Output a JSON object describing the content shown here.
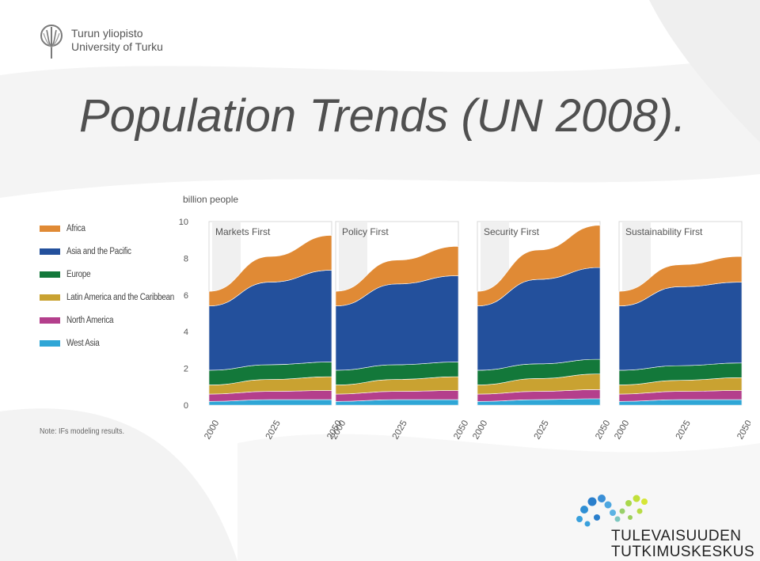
{
  "slide": {
    "title": "Population Trends (UN 2008).",
    "university_logo": {
      "line1": "Turun yliopisto",
      "line2": "University of Turku"
    },
    "center_logo": {
      "line1": "TULEVAISUUDEN",
      "line2": "TUTKIMUSKESKUS"
    },
    "note": "Note: IFs modeling results."
  },
  "colors": {
    "Africa": "#e08a35",
    "Asia and the Pacific": "#23509c",
    "Europe": "#13783a",
    "Latin America and the Caribbean": "#c9a231",
    "North America": "#b43f8c",
    "West Asia": "#2fa6d6"
  },
  "chart_data": {
    "type": "area",
    "stacked": true,
    "ylabel": "billion people",
    "yticks": [
      "0",
      "2",
      "4",
      "6",
      "8",
      "10"
    ],
    "ylim": [
      0,
      10
    ],
    "x": [
      "2000",
      "2025",
      "2050"
    ],
    "grid": false,
    "legend_position": "left",
    "legend": [
      "Africa",
      "Asia and the Pacific",
      "Europe",
      "Latin America and the Caribbean",
      "North America",
      "West Asia"
    ],
    "panels": [
      {
        "title": "Markets First",
        "series": [
          {
            "name": "West Asia",
            "values": [
              0.2,
              0.3,
              0.3
            ]
          },
          {
            "name": "North America",
            "values": [
              0.4,
              0.45,
              0.5
            ]
          },
          {
            "name": "Latin America and the Caribbean",
            "values": [
              0.5,
              0.65,
              0.75
            ]
          },
          {
            "name": "Europe",
            "values": [
              0.8,
              0.8,
              0.8
            ]
          },
          {
            "name": "Asia and the Pacific",
            "values": [
              3.5,
              4.5,
              5.0
            ]
          },
          {
            "name": "Africa",
            "values": [
              0.8,
              1.4,
              1.9
            ]
          }
        ]
      },
      {
        "title": "Policy First",
        "series": [
          {
            "name": "West Asia",
            "values": [
              0.2,
              0.3,
              0.3
            ]
          },
          {
            "name": "North America",
            "values": [
              0.4,
              0.45,
              0.5
            ]
          },
          {
            "name": "Latin America and the Caribbean",
            "values": [
              0.5,
              0.65,
              0.75
            ]
          },
          {
            "name": "Europe",
            "values": [
              0.8,
              0.8,
              0.8
            ]
          },
          {
            "name": "Asia and the Pacific",
            "values": [
              3.5,
              4.4,
              4.7
            ]
          },
          {
            "name": "Africa",
            "values": [
              0.8,
              1.3,
              1.6
            ]
          }
        ]
      },
      {
        "title": "Security First",
        "series": [
          {
            "name": "West Asia",
            "values": [
              0.2,
              0.3,
              0.35
            ]
          },
          {
            "name": "North America",
            "values": [
              0.4,
              0.45,
              0.5
            ]
          },
          {
            "name": "Latin America and the Caribbean",
            "values": [
              0.5,
              0.7,
              0.85
            ]
          },
          {
            "name": "Europe",
            "values": [
              0.8,
              0.8,
              0.8
            ]
          },
          {
            "name": "Asia and the Pacific",
            "values": [
              3.5,
              4.6,
              5.0
            ]
          },
          {
            "name": "Africa",
            "values": [
              0.8,
              1.6,
              2.3
            ]
          }
        ]
      },
      {
        "title": "Sustainability First",
        "series": [
          {
            "name": "West Asia",
            "values": [
              0.2,
              0.3,
              0.3
            ]
          },
          {
            "name": "North America",
            "values": [
              0.4,
              0.45,
              0.5
            ]
          },
          {
            "name": "Latin America and the Caribbean",
            "values": [
              0.5,
              0.6,
              0.7
            ]
          },
          {
            "name": "Europe",
            "values": [
              0.8,
              0.8,
              0.8
            ]
          },
          {
            "name": "Asia and the Pacific",
            "values": [
              3.5,
              4.3,
              4.4
            ]
          },
          {
            "name": "Africa",
            "values": [
              0.8,
              1.2,
              1.4
            ]
          }
        ]
      }
    ]
  }
}
